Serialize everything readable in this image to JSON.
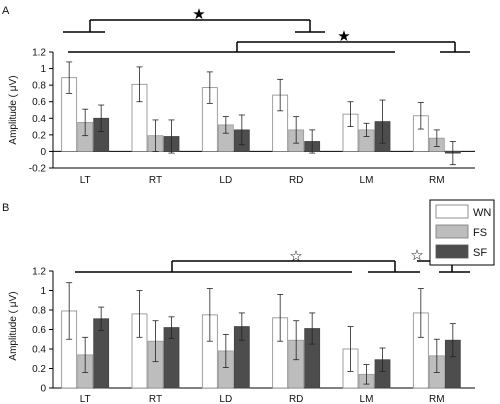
{
  "colors": {
    "WN": "#ffffff",
    "FS": "#bdbdbd",
    "SF": "#4d4d4d",
    "axis": "#000000"
  },
  "chart_data": [
    {
      "panel": "A",
      "type": "bar",
      "categories": [
        "LT",
        "RT",
        "LD",
        "RD",
        "LM",
        "RM"
      ],
      "ylabel": "Amplitude ( μV)",
      "ylim": [
        -0.2,
        1.2
      ],
      "yticks": [
        "1.2",
        "1",
        "0.8",
        "0.6",
        "0.4",
        "0.2",
        "0",
        "-0.2"
      ],
      "ytick_values": [
        1.2,
        1,
        0.8,
        0.6,
        0.4,
        0.2,
        0,
        -0.2
      ],
      "series": [
        {
          "name": "WN",
          "values": [
            0.89,
            0.81,
            0.77,
            0.68,
            0.45,
            0.43
          ],
          "errors": [
            0.19,
            0.21,
            0.19,
            0.19,
            0.15,
            0.16
          ]
        },
        {
          "name": "FS",
          "values": [
            0.35,
            0.19,
            0.32,
            0.26,
            0.26,
            0.16
          ],
          "errors": [
            0.16,
            0.19,
            0.1,
            0.16,
            0.08,
            0.1
          ]
        },
        {
          "name": "SF",
          "values": [
            0.4,
            0.18,
            0.26,
            0.12,
            0.36,
            -0.02
          ],
          "errors": [
            0.16,
            0.2,
            0.18,
            0.14,
            0.26,
            0.14
          ]
        }
      ],
      "significance": [
        "★",
        "★"
      ]
    },
    {
      "panel": "B",
      "type": "bar",
      "categories": [
        "LT",
        "RT",
        "LD",
        "RD",
        "LM",
        "RM"
      ],
      "ylabel": "Amplitude ( μV)",
      "ylim": [
        0,
        1.2
      ],
      "yticks": [
        "1.2",
        "1",
        "0.8",
        "0.6",
        "0.4",
        "0.2",
        "0"
      ],
      "ytick_values": [
        1.2,
        1,
        0.8,
        0.6,
        0.4,
        0.2,
        0
      ],
      "legend": [
        "WN",
        "FS",
        "SF"
      ],
      "series": [
        {
          "name": "WN",
          "values": [
            0.79,
            0.76,
            0.75,
            0.72,
            0.4,
            0.77
          ],
          "errors": [
            0.29,
            0.24,
            0.27,
            0.24,
            0.23,
            0.25
          ]
        },
        {
          "name": "FS",
          "values": [
            0.34,
            0.48,
            0.38,
            0.49,
            0.14,
            0.33
          ],
          "errors": [
            0.18,
            0.21,
            0.17,
            0.2,
            0.1,
            0.17
          ]
        },
        {
          "name": "SF",
          "values": [
            0.71,
            0.62,
            0.63,
            0.61,
            0.29,
            0.49
          ],
          "errors": [
            0.12,
            0.11,
            0.14,
            0.16,
            0.12,
            0.17
          ]
        }
      ],
      "significance": [
        "☆",
        "☆"
      ]
    }
  ]
}
